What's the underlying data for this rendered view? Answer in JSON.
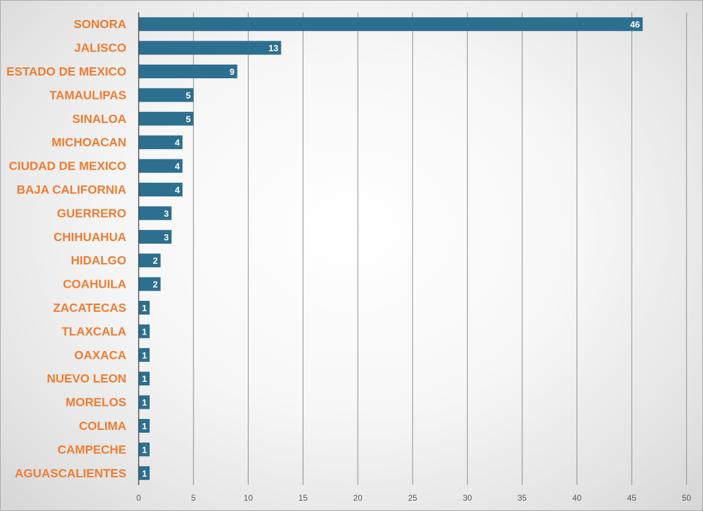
{
  "chart_data": {
    "type": "bar",
    "orientation": "horizontal",
    "categories": [
      "SONORA",
      "JALISCO",
      "ESTADO DE MEXICO",
      "TAMAULIPAS",
      "SINALOA",
      "MICHOACAN",
      "CIUDAD DE MEXICO",
      "BAJA CALIFORNIA",
      "GUERRERO",
      "CHIHUAHUA",
      "HIDALGO",
      "COAHUILA",
      "ZACATECAS",
      "TLAXCALA",
      "OAXACA",
      "NUEVO LEON",
      "MORELOS",
      "COLIMA",
      "CAMPECHE",
      "AGUASCALIENTES"
    ],
    "values": [
      46,
      13,
      9,
      5,
      5,
      4,
      4,
      4,
      3,
      3,
      2,
      2,
      1,
      1,
      1,
      1,
      1,
      1,
      1,
      1
    ],
    "data_labels": [
      "46",
      "13",
      "9",
      "5",
      "5",
      "4",
      "4",
      "4",
      "3",
      "3",
      "2",
      "2",
      "1",
      "1",
      "1",
      "1",
      "1",
      "1",
      "1",
      "1"
    ],
    "xlim": [
      0,
      50
    ],
    "x_ticks": [
      0,
      5,
      10,
      15,
      20,
      25,
      30,
      35,
      40,
      45,
      50
    ],
    "x_tick_labels": [
      "0",
      "5",
      "10",
      "15",
      "20",
      "25",
      "30",
      "35",
      "40",
      "45",
      "50"
    ],
    "grid": "vertical",
    "legend": "none",
    "title": "",
    "xlabel": "",
    "ylabel": ""
  },
  "colors": {
    "bar": "#2d6f8e",
    "category_label": "#ee7d31",
    "data_label": "#ffffff",
    "gridline": "#8c8c8c",
    "tick_label": "#595959"
  }
}
